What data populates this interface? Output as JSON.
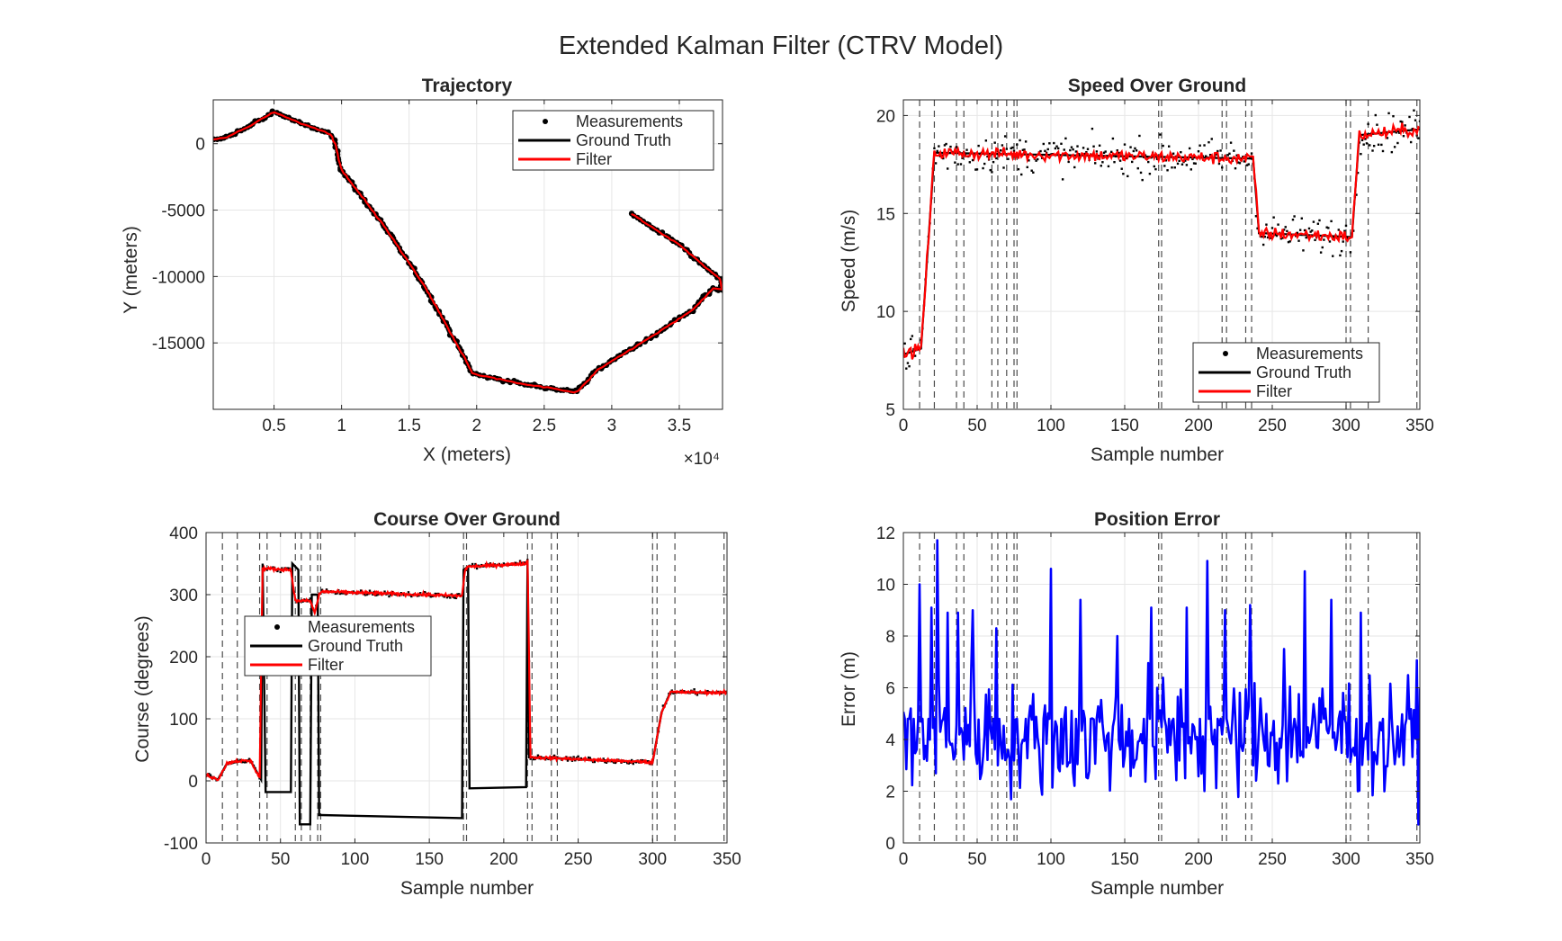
{
  "figure": {
    "title": "Extended Kalman Filter (CTRV Model)",
    "colors": {
      "measurements": "#000000",
      "ground_truth": "#000000",
      "filter": "#ff0000",
      "error": "#0000ff",
      "grid": "#e6e6e6",
      "event_lines": "#4d4d4d"
    }
  },
  "chart_data": [
    {
      "id": "trajectory",
      "type": "line",
      "title": "Trajectory",
      "xlabel": "X (meters)",
      "ylabel": "Y (meters)",
      "x_exponent_label": "×10⁴",
      "xlim": [
        0.05,
        3.82
      ],
      "ylim": [
        -20000,
        3300
      ],
      "xticks": [
        0.5,
        1,
        1.5,
        2,
        2.5,
        3,
        3.5
      ],
      "yticks": [
        0,
        -5000,
        -10000,
        -15000
      ],
      "grid": true,
      "legend": {
        "placement": "top-right",
        "entries": [
          "Measurements",
          "Ground Truth",
          "Filter"
        ]
      },
      "ground_truth_waypoints": {
        "x": [
          0.05,
          0.15,
          0.3,
          0.5,
          0.7,
          0.85,
          0.92,
          0.95,
          1.0,
          1.3,
          1.6,
          1.85,
          1.97,
          2.05,
          2.3,
          2.72,
          2.75,
          2.9,
          3.3,
          3.6,
          3.75,
          3.82,
          3.8,
          3.5,
          3.15
        ],
        "y": [
          300,
          500,
          1200,
          2400,
          1500,
          1000,
          700,
          0,
          -2000,
          -6000,
          -10500,
          -15000,
          -17300,
          -17500,
          -18000,
          -18700,
          -18600,
          -17000,
          -14500,
          -12500,
          -10900,
          -11000,
          -10200,
          -7600,
          -5300
        ]
      },
      "series": [
        {
          "name": "Measurements",
          "marker": "dot",
          "source": "ground_truth_waypoints",
          "spacing_m": 250,
          "noise_m": 90
        },
        {
          "name": "Ground Truth",
          "source": "ground_truth_waypoints"
        },
        {
          "name": "Filter",
          "source": "ground_truth_waypoints",
          "offset_m": 40
        }
      ]
    },
    {
      "id": "speed",
      "type": "line",
      "title": "Speed Over Ground",
      "xlabel": "Sample number",
      "ylabel": "Speed (m/s)",
      "xlim": [
        0,
        350
      ],
      "ylim": [
        5,
        20.8
      ],
      "xticks": [
        0,
        50,
        100,
        150,
        200,
        250,
        300,
        350
      ],
      "yticks": [
        5,
        10,
        15,
        20
      ],
      "grid": true,
      "legend": {
        "placement": "bottom-right",
        "entries": [
          "Measurements",
          "Ground Truth",
          "Filter"
        ]
      },
      "event_lines": [
        11,
        21,
        36,
        41,
        60,
        64,
        70,
        75,
        77,
        173,
        175,
        216,
        219,
        232,
        236,
        300,
        303,
        315,
        348
      ],
      "ground_truth_segments": [
        {
          "from": 0,
          "to": 12,
          "start": 7.8,
          "end": 8.1
        },
        {
          "from": 12,
          "to": 21,
          "start": 8.1,
          "end": 18.1
        },
        {
          "from": 21,
          "to": 237,
          "start": 18.1,
          "end": 17.8
        },
        {
          "from": 237,
          "to": 241,
          "start": 17.8,
          "end": 14.0
        },
        {
          "from": 241,
          "to": 304,
          "start": 14.0,
          "end": 13.8
        },
        {
          "from": 304,
          "to": 309,
          "start": 13.8,
          "end": 19.0
        },
        {
          "from": 309,
          "to": 350,
          "start": 19.0,
          "end": 19.3
        }
      ],
      "series": [
        {
          "name": "Measurements",
          "marker": "dot",
          "noise_sd": 0.9
        },
        {
          "name": "Ground Truth"
        },
        {
          "name": "Filter",
          "noise_sd": 0.35
        }
      ]
    },
    {
      "id": "course",
      "type": "line",
      "title": "Course Over Ground",
      "xlabel": "Sample number",
      "ylabel": "Course (degrees)",
      "xlim": [
        0,
        350
      ],
      "ylim": [
        -100,
        400
      ],
      "xticks": [
        0,
        50,
        100,
        150,
        200,
        250,
        300,
        350
      ],
      "yticks": [
        -100,
        0,
        100,
        200,
        300,
        400
      ],
      "grid": true,
      "legend": {
        "placement": "middle-left",
        "entries": [
          "Measurements",
          "Ground Truth",
          "Filter"
        ]
      },
      "event_lines": [
        11,
        21,
        36,
        41,
        60,
        64,
        70,
        75,
        77,
        173,
        175,
        216,
        219,
        232,
        236,
        300,
        303,
        315,
        348
      ],
      "ground_truth_points": {
        "x": [
          0,
          8,
          14,
          20,
          30,
          37,
          38,
          40,
          57,
          58,
          62,
          63,
          70,
          71,
          75,
          76,
          77,
          172,
          173,
          176,
          177,
          215,
          216,
          217,
          218,
          300,
          306,
          312,
          350
        ],
        "y": [
          10,
          2,
          28,
          32,
          32,
          2,
          350,
          -18,
          -18,
          350,
          340,
          -70,
          -70,
          300,
          300,
          -55,
          -55,
          -60,
          340,
          345,
          -12,
          -10,
          355,
          38,
          38,
          30,
          110,
          143,
          142
        ]
      },
      "filter_points": {
        "x": [
          0,
          8,
          14,
          20,
          30,
          36,
          38,
          57,
          60,
          63,
          70,
          73,
          76,
          78,
          172,
          174,
          176,
          215,
          216,
          218,
          300,
          306,
          312,
          350
        ],
        "y": [
          10,
          2,
          28,
          32,
          32,
          5,
          342,
          340,
          290,
          290,
          290,
          270,
          300,
          305,
          298,
          340,
          345,
          350,
          355,
          38,
          30,
          110,
          143,
          142
        ]
      },
      "series": [
        {
          "name": "Measurements",
          "marker": "dot",
          "source": "filter_points"
        },
        {
          "name": "Ground Truth",
          "source": "ground_truth_points"
        },
        {
          "name": "Filter",
          "source": "filter_points"
        }
      ]
    },
    {
      "id": "error",
      "type": "line",
      "title": "Position Error",
      "xlabel": "Sample number",
      "ylabel": "Error (m)",
      "xlim": [
        0,
        350
      ],
      "ylim": [
        0,
        12
      ],
      "xticks": [
        0,
        50,
        100,
        150,
        200,
        250,
        300,
        350
      ],
      "yticks": [
        0,
        2,
        4,
        6,
        8,
        10,
        12
      ],
      "grid": true,
      "event_lines": [
        11,
        21,
        36,
        41,
        60,
        64,
        70,
        75,
        77,
        173,
        175,
        216,
        219,
        232,
        236,
        300,
        303,
        315,
        348
      ],
      "peaks": {
        "x": [
          5,
          11,
          19,
          23,
          30,
          37,
          47,
          63,
          100,
          120,
          145,
          168,
          192,
          206,
          218,
          235,
          258,
          272,
          290,
          310
        ],
        "y": [
          5.2,
          10.0,
          9.1,
          11.7,
          8.9,
          8.9,
          9.0,
          8.3,
          10.6,
          9.4,
          8.0,
          9.1,
          9.1,
          10.9,
          9.0,
          9.2,
          7.5,
          10.5,
          9.4,
          8.9
        ]
      },
      "series": [
        {
          "name": "Error",
          "mean": 4.3,
          "spread": 2.4
        }
      ]
    }
  ]
}
